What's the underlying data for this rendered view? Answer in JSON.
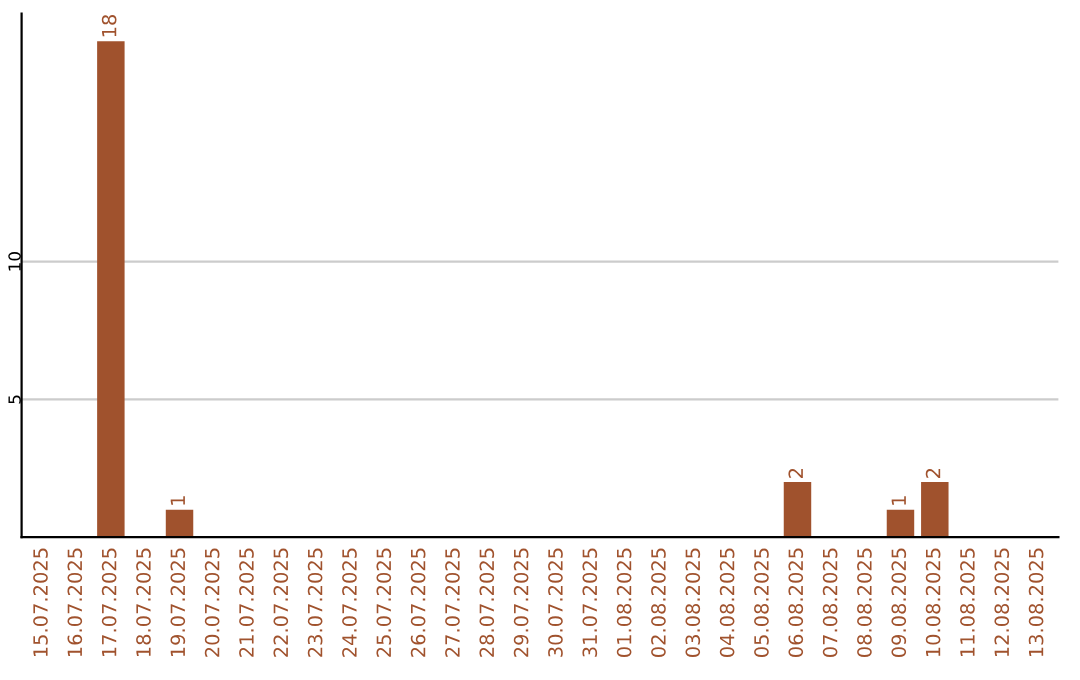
{
  "chart_data": {
    "type": "bar",
    "categories": [
      "15.07.2025",
      "16.07.2025",
      "17.07.2025",
      "18.07.2025",
      "19.07.2025",
      "20.07.2025",
      "21.07.2025",
      "22.07.2025",
      "23.07.2025",
      "24.07.2025",
      "25.07.2025",
      "26.07.2025",
      "27.07.2025",
      "28.07.2025",
      "29.07.2025",
      "30.07.2025",
      "31.07.2025",
      "01.08.2025",
      "02.08.2025",
      "03.08.2025",
      "04.08.2025",
      "05.08.2025",
      "06.08.2025",
      "07.08.2025",
      "08.08.2025",
      "09.08.2025",
      "10.08.2025",
      "11.08.2025",
      "12.08.2025",
      "13.08.2025"
    ],
    "values": [
      0,
      0,
      18,
      0,
      1,
      0,
      0,
      0,
      0,
      0,
      0,
      0,
      0,
      0,
      0,
      0,
      0,
      0,
      0,
      0,
      0,
      0,
      2,
      0,
      0,
      1,
      2,
      0,
      0,
      0
    ],
    "value_labels": [
      null,
      null,
      "18",
      null,
      "1",
      null,
      null,
      null,
      null,
      null,
      null,
      null,
      null,
      null,
      null,
      null,
      null,
      null,
      null,
      null,
      null,
      null,
      "2",
      null,
      null,
      "1",
      "2",
      null,
      null,
      null
    ],
    "color": "#a0522d",
    "ylim": [
      0,
      19
    ],
    "yticks": [
      5,
      10
    ],
    "grid": "y"
  }
}
